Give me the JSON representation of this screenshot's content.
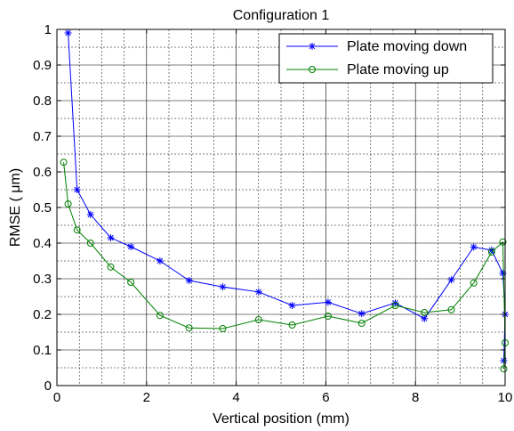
{
  "chart_data": {
    "type": "line",
    "title": "Configuration 1",
    "xlabel": "Vertical position (mm)",
    "ylabel": "RMSE ( μm)",
    "xlim": [
      0,
      10
    ],
    "ylim": [
      0,
      1
    ],
    "x_ticks": [
      "0",
      "2",
      "4",
      "6",
      "8",
      "10"
    ],
    "y_ticks": [
      "0",
      "0.1",
      "0.2",
      "0.3",
      "0.4",
      "0.5",
      "0.6",
      "0.7",
      "0.8",
      "0.9",
      "1"
    ],
    "grid": true,
    "legend_position": "top-right",
    "series": [
      {
        "name": "Plate moving down",
        "color": "#0000ff",
        "marker": "asterisk",
        "x": [
          0.25,
          0.45,
          0.75,
          1.2,
          1.65,
          2.3,
          2.95,
          3.7,
          4.5,
          5.25,
          6.05,
          6.8,
          7.55,
          8.2,
          8.8,
          9.3,
          9.7,
          9.95,
          10.0,
          9.97
        ],
        "y": [
          0.99,
          0.55,
          0.48,
          0.415,
          0.39,
          0.35,
          0.295,
          0.277,
          0.263,
          0.225,
          0.234,
          0.202,
          0.232,
          0.188,
          0.297,
          0.389,
          0.38,
          0.315,
          0.2,
          0.07
        ]
      },
      {
        "name": "Plate moving up",
        "color": "#008000",
        "marker": "circle",
        "x": [
          0.15,
          0.25,
          0.45,
          0.75,
          1.2,
          1.65,
          2.3,
          2.95,
          3.7,
          4.5,
          5.25,
          6.05,
          6.8,
          7.55,
          8.2,
          8.8,
          9.3,
          9.7,
          9.95,
          10.0,
          9.97
        ],
        "y": [
          0.627,
          0.51,
          0.437,
          0.4,
          0.333,
          0.29,
          0.197,
          0.162,
          0.16,
          0.185,
          0.17,
          0.195,
          0.175,
          0.225,
          0.205,
          0.213,
          0.288,
          0.375,
          0.403,
          0.12,
          0.047
        ]
      }
    ]
  }
}
